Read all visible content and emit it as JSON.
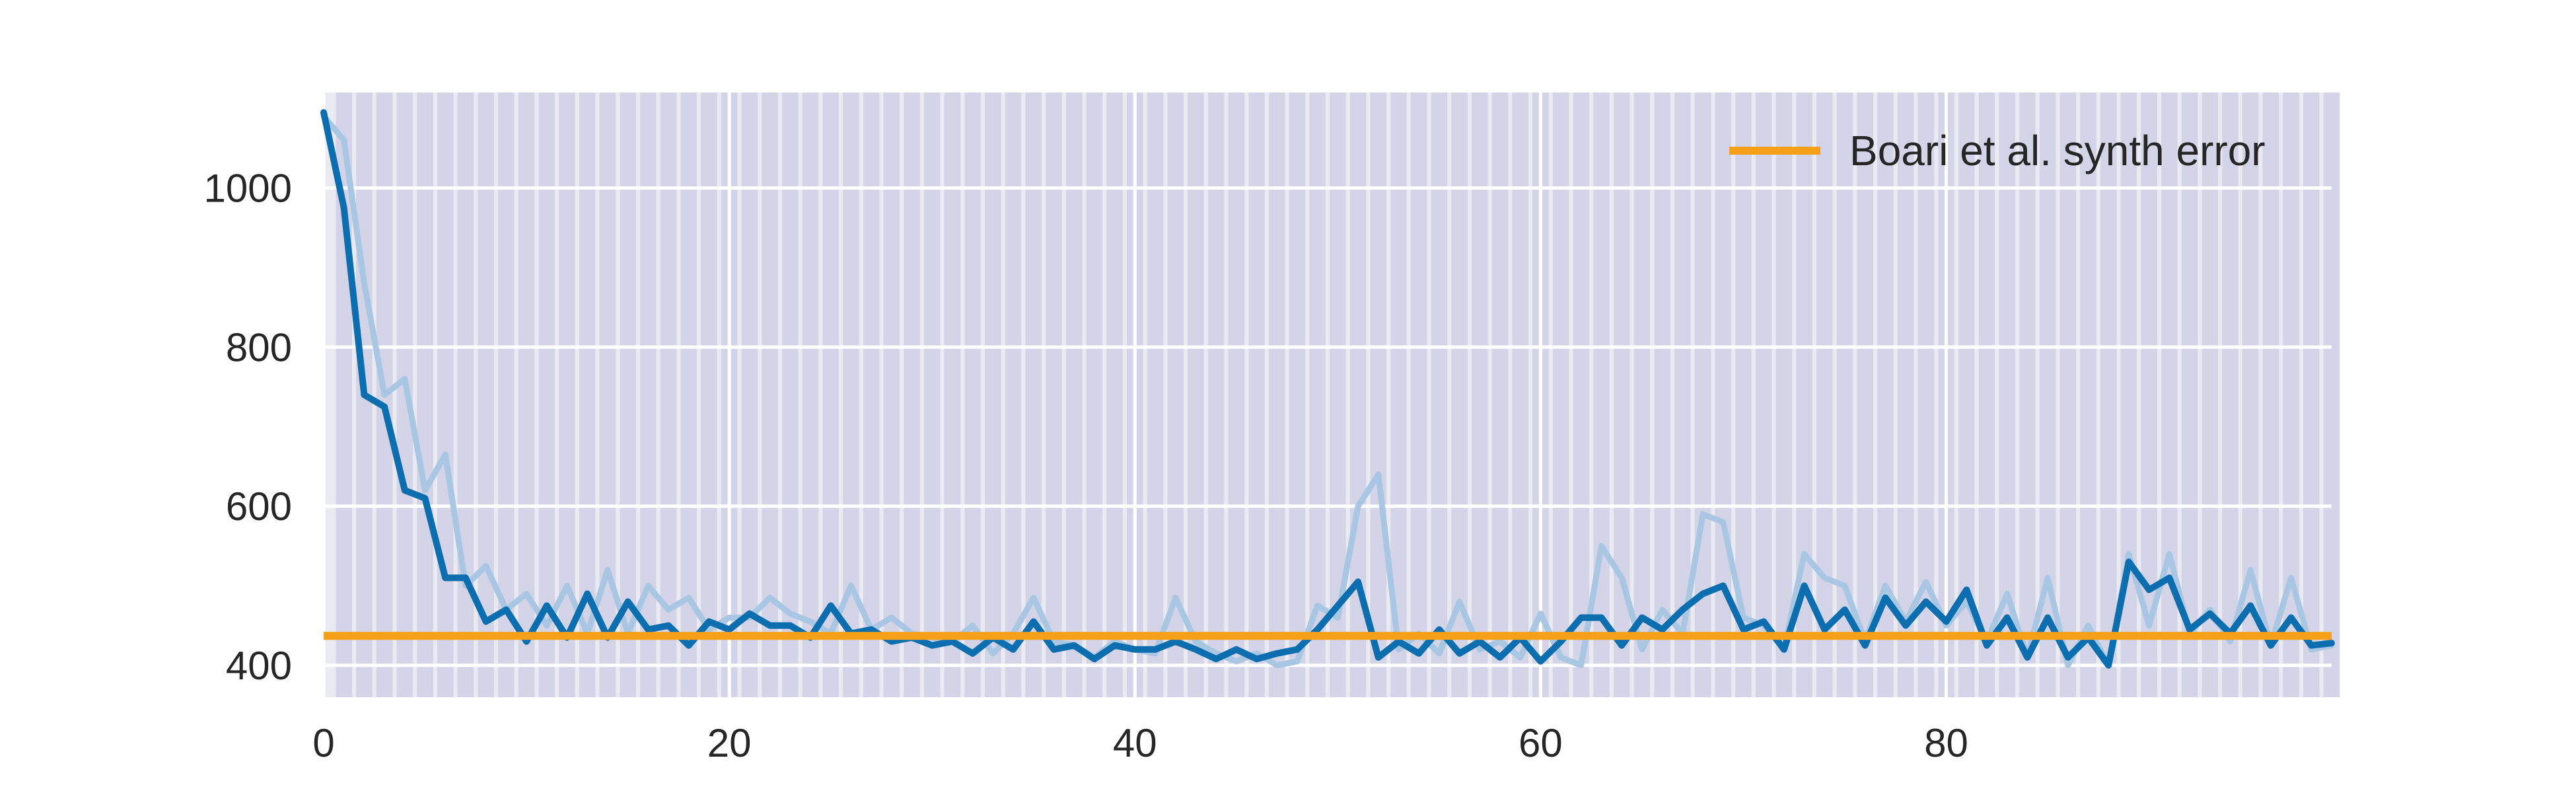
{
  "chart_data": {
    "type": "line",
    "title": "",
    "xlabel": "",
    "ylabel": "",
    "xlim": [
      0,
      99
    ],
    "ylim": [
      360,
      1120
    ],
    "x_ticks": [
      0,
      20,
      40,
      60,
      80
    ],
    "y_ticks": [
      400,
      600,
      800,
      1000
    ],
    "grid": true,
    "legend_position": "top-right",
    "shaded_bands": {
      "start": 0.6,
      "width": 0.8,
      "step": 1,
      "count": 99
    },
    "colors": {
      "background": "#EAEAF2",
      "band": "#D4D4E8",
      "grid": "#FFFFFF",
      "smoothed": "#0C6EAF",
      "raw": "#A9C7E2",
      "reference": "#F6A01A"
    },
    "series": [
      {
        "role": "raw",
        "values": [
          1090,
          1060,
          880,
          740,
          760,
          620,
          665,
          500,
          525,
          470,
          490,
          450,
          500,
          440,
          520,
          440,
          500,
          470,
          485,
          445,
          460,
          460,
          485,
          465,
          455,
          440,
          500,
          445,
          460,
          440,
          435,
          430,
          450,
          415,
          440,
          485,
          430,
          425,
          410,
          430,
          420,
          415,
          485,
          430,
          415,
          405,
          415,
          400,
          405,
          475,
          460,
          600,
          640,
          420,
          440,
          415,
          480,
          420,
          430,
          410,
          465,
          410,
          400,
          550,
          510,
          420,
          470,
          440,
          590,
          580,
          460,
          450,
          420,
          540,
          510,
          500,
          430,
          500,
          455,
          505,
          450,
          480,
          430,
          490,
          410,
          510,
          400,
          450,
          400,
          540,
          450,
          540,
          440,
          470,
          430,
          520,
          425,
          510,
          420,
          425
        ]
      },
      {
        "role": "smoothed",
        "values": [
          1095,
          975,
          740,
          725,
          620,
          610,
          510,
          510,
          455,
          470,
          430,
          475,
          435,
          490,
          435,
          480,
          445,
          450,
          425,
          455,
          445,
          465,
          450,
          450,
          435,
          475,
          440,
          445,
          430,
          435,
          425,
          430,
          415,
          435,
          420,
          455,
          420,
          425,
          408,
          425,
          420,
          420,
          430,
          420,
          408,
          420,
          408,
          415,
          420,
          445,
          475,
          505,
          410,
          430,
          415,
          445,
          415,
          430,
          410,
          435,
          405,
          430,
          460,
          460,
          425,
          460,
          445,
          470,
          490,
          500,
          445,
          455,
          420,
          500,
          445,
          470,
          425,
          485,
          450,
          480,
          455,
          495,
          425,
          460,
          410,
          460,
          410,
          435,
          400,
          530,
          495,
          510,
          445,
          465,
          440,
          475,
          425,
          460,
          425,
          428
        ]
      }
    ],
    "reference_line": {
      "label": "Boari et al. synth error",
      "y": 437
    }
  }
}
